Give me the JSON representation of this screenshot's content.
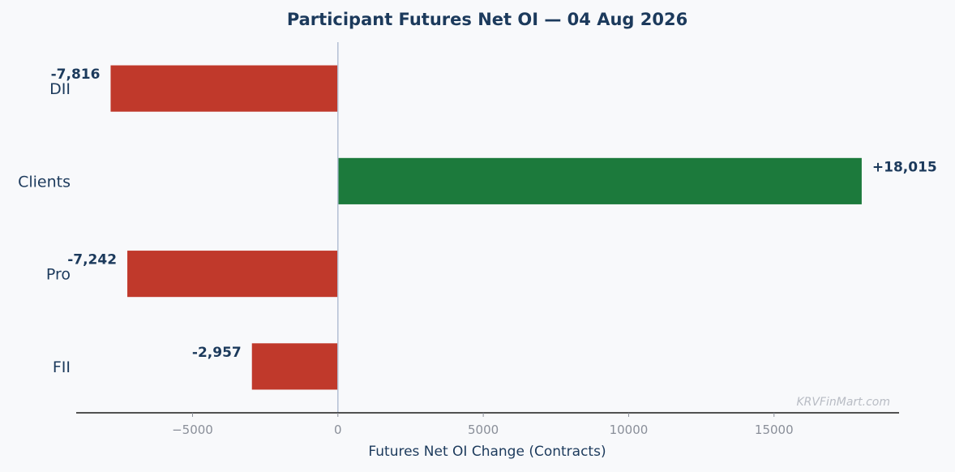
{
  "chart_data": {
    "type": "bar",
    "orientation": "horizontal",
    "title": "Participant Futures Net OI — 04 Aug 2026",
    "xlabel": "Futures Net OI Change (Contracts)",
    "ylabel": "",
    "categories": [
      "DII",
      "Clients",
      "Pro",
      "FII"
    ],
    "values": [
      -7816,
      18015,
      -7242,
      -2957
    ],
    "value_labels": [
      "-7,816",
      "+18,015",
      "-7,242",
      "-2,957"
    ],
    "xlim": [
      -9000,
      19300
    ],
    "xticks": [
      -5000,
      0,
      5000,
      10000,
      15000
    ],
    "xtick_labels": [
      "−5000",
      "0",
      "5000",
      "10000",
      "15000"
    ],
    "colors": {
      "positive": "#1c7a3c",
      "negative": "#c0392b",
      "zero_line": "#b4c0d4",
      "axis": "#1a1a1a",
      "text": "#1c3a5c"
    },
    "grid": false,
    "watermark": "KRVFinMart.com"
  }
}
